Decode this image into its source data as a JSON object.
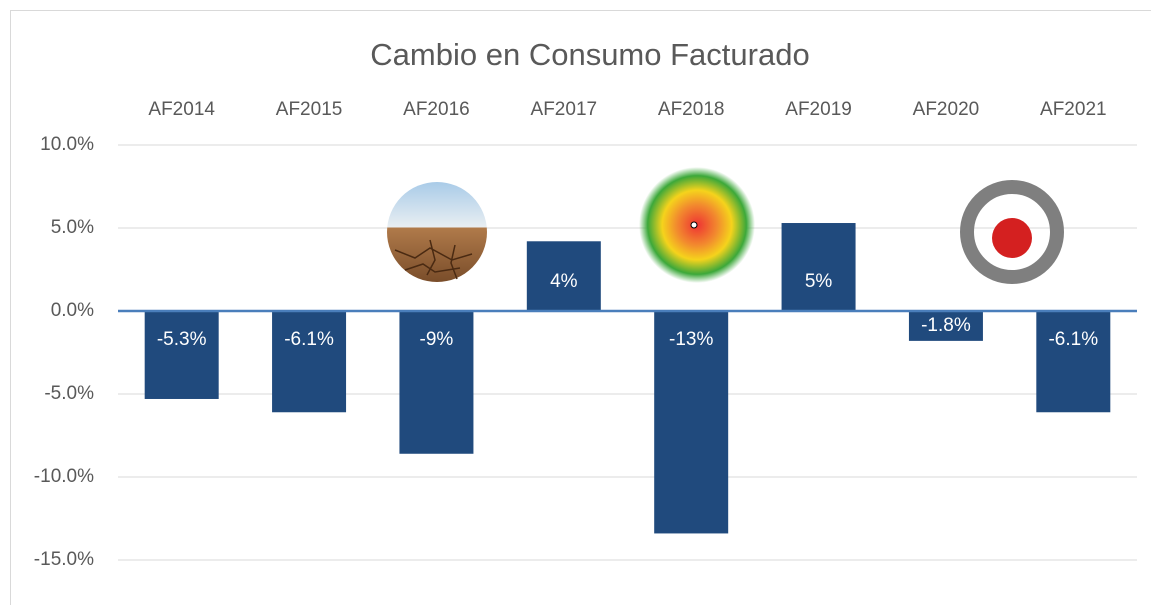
{
  "chart_data": {
    "type": "bar",
    "title": "Cambio en Consumo Facturado",
    "categories": [
      "AF2014",
      "AF2015",
      "AF2016",
      "AF2017",
      "AF2018",
      "AF2019",
      "AF2020",
      "AF2021"
    ],
    "values": [
      -5.3,
      -6.1,
      -8.6,
      4.2,
      -13.4,
      5.3,
      -1.8,
      -6.1
    ],
    "value_labels": [
      "-5.3%",
      "-6.1%",
      "-9%",
      "4%",
      "-13%",
      "5%",
      "-1.8%",
      "-6.1%"
    ],
    "color": "#204a7d",
    "ylim": [
      -15,
      10
    ],
    "yticks": [
      {
        "value": -15,
        "label": "-15.0%"
      },
      {
        "value": -10,
        "label": "-10.0%"
      },
      {
        "value": -5,
        "label": "-5.0%"
      },
      {
        "value": 0,
        "label": "0.0%"
      },
      {
        "value": 5,
        "label": "5.0%"
      },
      {
        "value": 10,
        "label": "10.0%"
      }
    ],
    "grid": true
  }
}
